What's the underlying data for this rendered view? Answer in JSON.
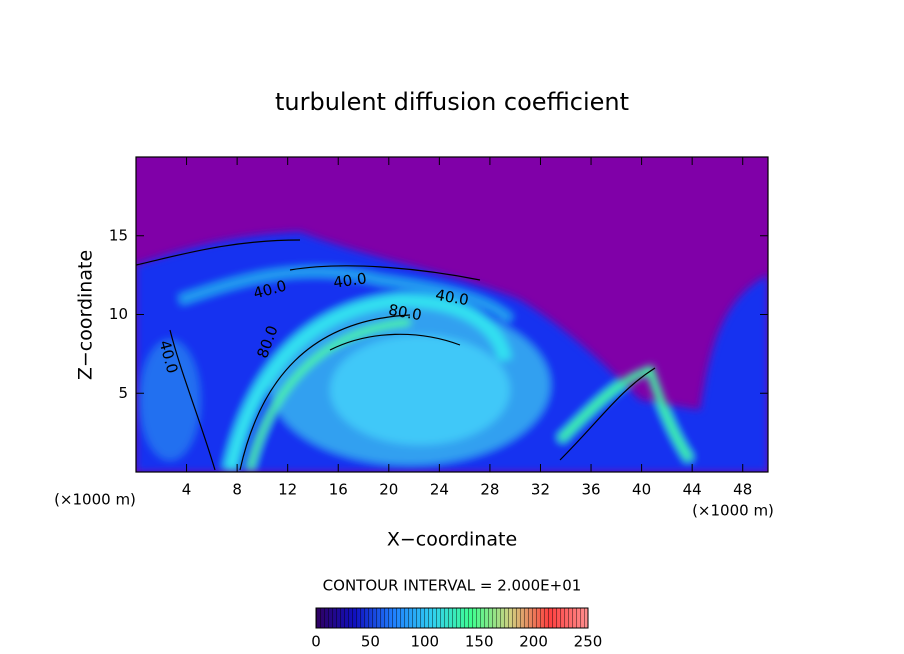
{
  "chart_data": {
    "type": "contour",
    "title": "turbulent diffusion coefficient",
    "xlabel": "X−coordinate",
    "ylabel": "Z−coordinate",
    "xunit": "(×1000 m)",
    "yunit": "(×1000 m)",
    "xlim": [
      0,
      50
    ],
    "ylim": [
      0,
      20
    ],
    "xticks": [
      4,
      8,
      12,
      16,
      20,
      24,
      28,
      32,
      36,
      40,
      44,
      48
    ],
    "yticks": [
      5,
      10,
      15
    ],
    "contour_interval": "CONTOUR INTERVAL = 2.000E+01",
    "contour_labels": [
      "40.0",
      "40.0",
      "40.0",
      "80.0",
      "80.0",
      "40.0"
    ],
    "colorbar": {
      "lim": [
        0,
        250
      ],
      "ticks": [
        0,
        50,
        100,
        150,
        200,
        250
      ],
      "colors": [
        "#300060",
        "#1010c0",
        "#2080ff",
        "#30d0f0",
        "#40ff90",
        "#d0d080",
        "#ff4040",
        "#ff9090"
      ]
    }
  }
}
